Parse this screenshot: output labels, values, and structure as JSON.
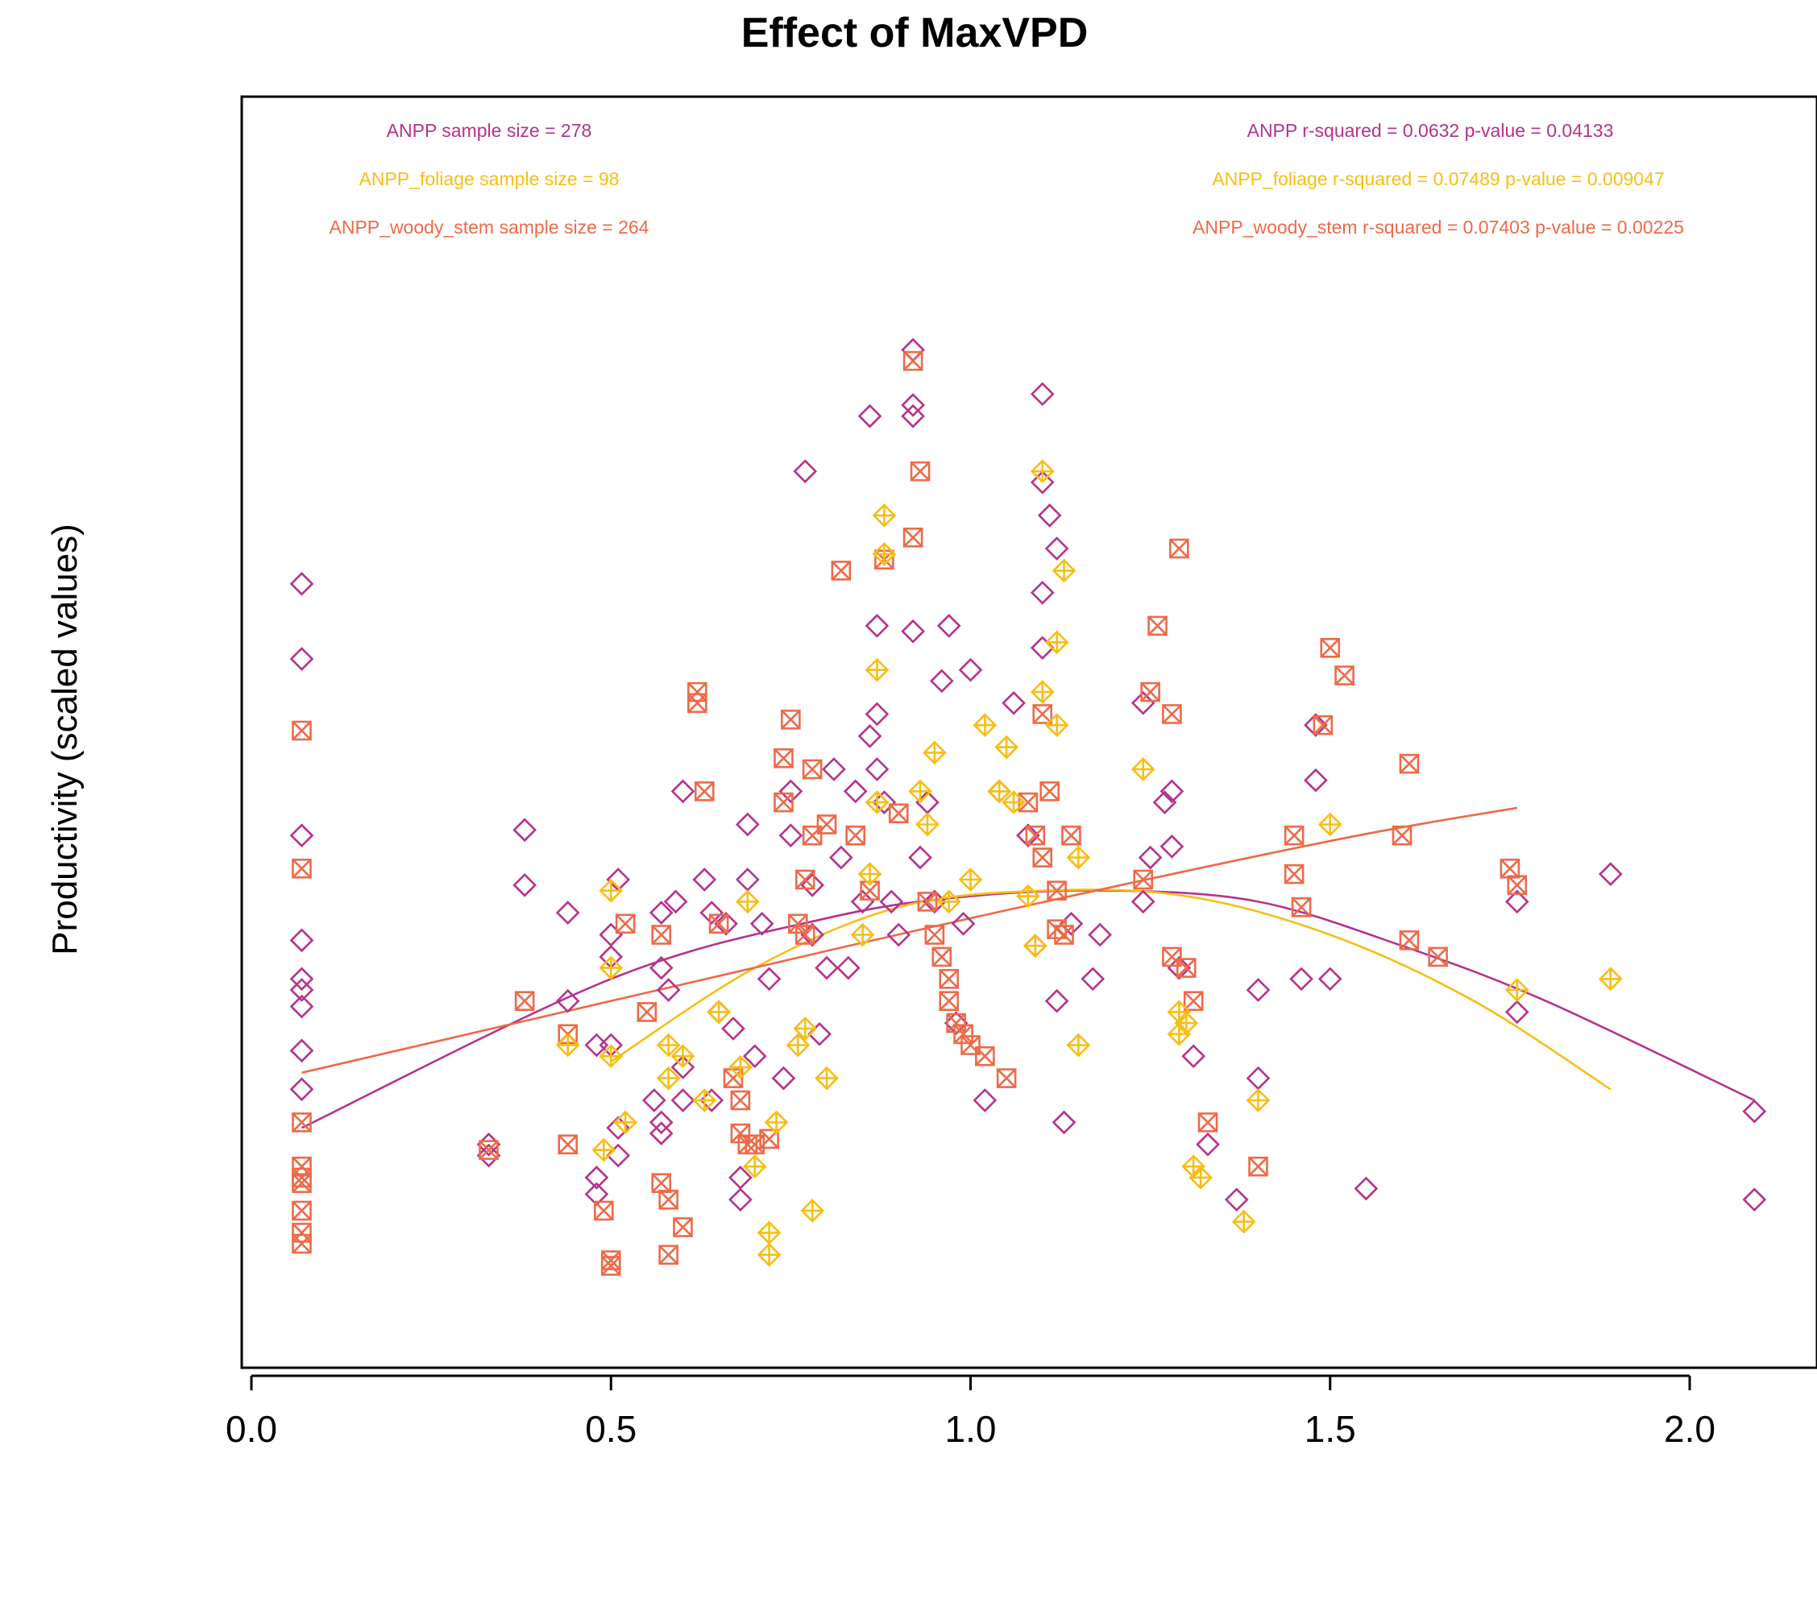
{
  "chart_data": {
    "type": "scatter",
    "title": "Effect of MaxVPD",
    "xlabel": "",
    "ylabel": "Productivity (scaled values)",
    "xlim": [
      -0.02,
      2.2
    ],
    "ylim": [
      0.0,
      1.0
    ],
    "x_ticks": [
      0.0,
      0.5,
      1.0,
      1.5,
      2.0
    ],
    "x_tick_labels": [
      "0.0",
      "0.5",
      "1.0",
      "1.5",
      "2.0"
    ],
    "y_axis_shown": false,
    "grid": false,
    "annotations_left": [
      {
        "text": "ANPP sample size = 278",
        "series": "ANPP"
      },
      {
        "text": "ANPP_foliage sample size = 98",
        "series": "ANPP_foliage"
      },
      {
        "text": "ANPP_woody_stem sample size = 264",
        "series": "ANPP_woody_stem"
      }
    ],
    "annotations_right": [
      {
        "text": "ANPP r-squared =  0.0632 p-value =  0.04133",
        "series": "ANPP"
      },
      {
        "text": "ANPP_foliage r-squared =  0.07489 p-value =  0.009047",
        "series": "ANPP_foliage"
      },
      {
        "text": "ANPP_woody_stem r-squared =  0.07403 p-value =  0.00225",
        "series": "ANPP_woody_stem"
      }
    ],
    "series": [
      {
        "name": "ANPP",
        "color": "#b5338a",
        "marker": "diamond",
        "points": [
          [
            0.07,
            0.668
          ],
          [
            0.07,
            0.6
          ],
          [
            0.07,
            0.44
          ],
          [
            0.07,
            0.345
          ],
          [
            0.07,
            0.31
          ],
          [
            0.07,
            0.3
          ],
          [
            0.07,
            0.285
          ],
          [
            0.07,
            0.245
          ],
          [
            0.07,
            0.21
          ],
          [
            0.33,
            0.15
          ],
          [
            0.33,
            0.16
          ],
          [
            0.38,
            0.445
          ],
          [
            0.38,
            0.395
          ],
          [
            0.44,
            0.37
          ],
          [
            0.44,
            0.29
          ],
          [
            0.48,
            0.25
          ],
          [
            0.48,
            0.13
          ],
          [
            0.48,
            0.115
          ],
          [
            0.5,
            0.25
          ],
          [
            0.5,
            0.35
          ],
          [
            0.5,
            0.33
          ],
          [
            0.51,
            0.4
          ],
          [
            0.51,
            0.175
          ],
          [
            0.51,
            0.15
          ],
          [
            0.56,
            0.2
          ],
          [
            0.57,
            0.17
          ],
          [
            0.57,
            0.18
          ],
          [
            0.57,
            0.37
          ],
          [
            0.57,
            0.32
          ],
          [
            0.58,
            0.3
          ],
          [
            0.59,
            0.38
          ],
          [
            0.6,
            0.48
          ],
          [
            0.6,
            0.23
          ],
          [
            0.6,
            0.2
          ],
          [
            0.63,
            0.4
          ],
          [
            0.64,
            0.37
          ],
          [
            0.64,
            0.2
          ],
          [
            0.65,
            0.28
          ],
          [
            0.66,
            0.36
          ],
          [
            0.67,
            0.265
          ],
          [
            0.68,
            0.13
          ],
          [
            0.68,
            0.11
          ],
          [
            0.69,
            0.45
          ],
          [
            0.69,
            0.4
          ],
          [
            0.7,
            0.24
          ],
          [
            0.71,
            0.36
          ],
          [
            0.72,
            0.31
          ],
          [
            0.74,
            0.22
          ],
          [
            0.75,
            0.48
          ],
          [
            0.75,
            0.44
          ],
          [
            0.77,
            0.77
          ],
          [
            0.78,
            0.395
          ],
          [
            0.78,
            0.35
          ],
          [
            0.79,
            0.26
          ],
          [
            0.8,
            0.32
          ],
          [
            0.81,
            0.5
          ],
          [
            0.82,
            0.42
          ],
          [
            0.83,
            0.32
          ],
          [
            0.84,
            0.48
          ],
          [
            0.85,
            0.38
          ],
          [
            0.86,
            0.53
          ],
          [
            0.86,
            0.82
          ],
          [
            0.87,
            0.63
          ],
          [
            0.87,
            0.55
          ],
          [
            0.87,
            0.5
          ],
          [
            0.88,
            0.47
          ],
          [
            0.89,
            0.38
          ],
          [
            0.9,
            0.35
          ],
          [
            0.92,
            0.83
          ],
          [
            0.92,
            0.82
          ],
          [
            0.92,
            0.88
          ],
          [
            0.92,
            0.625
          ],
          [
            0.93,
            0.42
          ],
          [
            0.94,
            0.47
          ],
          [
            0.95,
            0.38
          ],
          [
            0.96,
            0.58
          ],
          [
            0.97,
            0.63
          ],
          [
            0.98,
            0.27
          ],
          [
            0.99,
            0.36
          ],
          [
            1.0,
            0.59
          ],
          [
            1.02,
            0.2
          ],
          [
            1.04,
            0.48
          ],
          [
            1.06,
            0.56
          ],
          [
            1.08,
            0.44
          ],
          [
            1.09,
            0.34
          ],
          [
            1.1,
            0.76
          ],
          [
            1.1,
            0.66
          ],
          [
            1.1,
            0.61
          ],
          [
            1.1,
            0.84
          ],
          [
            1.11,
            0.73
          ],
          [
            1.12,
            0.7
          ],
          [
            1.12,
            0.29
          ],
          [
            1.13,
            0.18
          ],
          [
            1.14,
            0.36
          ],
          [
            1.17,
            0.31
          ],
          [
            1.18,
            0.35
          ],
          [
            1.24,
            0.38
          ],
          [
            1.24,
            0.56
          ],
          [
            1.25,
            0.42
          ],
          [
            1.27,
            0.47
          ],
          [
            1.28,
            0.48
          ],
          [
            1.28,
            0.43
          ],
          [
            1.29,
            0.32
          ],
          [
            1.31,
            0.24
          ],
          [
            1.33,
            0.16
          ],
          [
            1.37,
            0.11
          ],
          [
            1.4,
            0.3
          ],
          [
            1.4,
            0.22
          ],
          [
            1.46,
            0.31
          ],
          [
            1.48,
            0.54
          ],
          [
            1.48,
            0.49
          ],
          [
            1.5,
            0.31
          ],
          [
            1.55,
            0.12
          ],
          [
            1.76,
            0.28
          ],
          [
            1.76,
            0.38
          ],
          [
            1.89,
            0.405
          ],
          [
            2.09,
            0.19
          ],
          [
            2.09,
            0.11
          ]
        ],
        "fit": {
          "x_start": 0.07,
          "x_end": 2.09,
          "points": [
            [
              0.07,
              0.175
            ],
            [
              0.5,
              0.31
            ],
            [
              0.8,
              0.365
            ],
            [
              1.0,
              0.385
            ],
            [
              1.2,
              0.39
            ],
            [
              1.4,
              0.38
            ],
            [
              1.6,
              0.34
            ],
            [
              1.8,
              0.29
            ],
            [
              2.09,
              0.2
            ]
          ]
        }
      },
      {
        "name": "ANPP_foliage",
        "color": "#f7be16",
        "marker": "diamond-plus",
        "points": [
          [
            0.44,
            0.25
          ],
          [
            0.49,
            0.155
          ],
          [
            0.5,
            0.39
          ],
          [
            0.5,
            0.32
          ],
          [
            0.5,
            0.24
          ],
          [
            0.52,
            0.18
          ],
          [
            0.58,
            0.25
          ],
          [
            0.58,
            0.22
          ],
          [
            0.6,
            0.24
          ],
          [
            0.63,
            0.2
          ],
          [
            0.65,
            0.28
          ],
          [
            0.68,
            0.23
          ],
          [
            0.69,
            0.38
          ],
          [
            0.7,
            0.14
          ],
          [
            0.72,
            0.08
          ],
          [
            0.72,
            0.06
          ],
          [
            0.73,
            0.18
          ],
          [
            0.76,
            0.25
          ],
          [
            0.77,
            0.265
          ],
          [
            0.78,
            0.1
          ],
          [
            0.8,
            0.22
          ],
          [
            0.85,
            0.35
          ],
          [
            0.86,
            0.405
          ],
          [
            0.87,
            0.47
          ],
          [
            0.87,
            0.59
          ],
          [
            0.88,
            0.695
          ],
          [
            0.88,
            0.73
          ],
          [
            0.93,
            0.48
          ],
          [
            0.94,
            0.45
          ],
          [
            0.95,
            0.515
          ],
          [
            0.97,
            0.38
          ],
          [
            1.0,
            0.4
          ],
          [
            1.02,
            0.54
          ],
          [
            1.04,
            0.48
          ],
          [
            1.05,
            0.52
          ],
          [
            1.06,
            0.47
          ],
          [
            1.08,
            0.385
          ],
          [
            1.09,
            0.34
          ],
          [
            1.1,
            0.77
          ],
          [
            1.1,
            0.57
          ],
          [
            1.12,
            0.54
          ],
          [
            1.12,
            0.615
          ],
          [
            1.13,
            0.68
          ],
          [
            1.15,
            0.25
          ],
          [
            1.15,
            0.42
          ],
          [
            1.24,
            0.5
          ],
          [
            1.29,
            0.26
          ],
          [
            1.29,
            0.28
          ],
          [
            1.3,
            0.27
          ],
          [
            1.31,
            0.14
          ],
          [
            1.32,
            0.13
          ],
          [
            1.38,
            0.09
          ],
          [
            1.4,
            0.2
          ],
          [
            1.5,
            0.45
          ],
          [
            1.76,
            0.3
          ],
          [
            1.89,
            0.31
          ]
        ],
        "fit": {
          "x_start": 0.5,
          "x_end": 1.89,
          "points": [
            [
              0.5,
              0.235
            ],
            [
              0.7,
              0.32
            ],
            [
              0.9,
              0.375
            ],
            [
              1.1,
              0.39
            ],
            [
              1.3,
              0.385
            ],
            [
              1.5,
              0.35
            ],
            [
              1.7,
              0.29
            ],
            [
              1.89,
              0.21
            ]
          ]
        }
      },
      {
        "name": "ANPP_woody_stem",
        "color": "#ed6a49",
        "marker": "square-x",
        "points": [
          [
            0.07,
            0.535
          ],
          [
            0.07,
            0.41
          ],
          [
            0.07,
            0.18
          ],
          [
            0.07,
            0.14
          ],
          [
            0.07,
            0.13
          ],
          [
            0.07,
            0.125
          ],
          [
            0.07,
            0.1
          ],
          [
            0.07,
            0.08
          ],
          [
            0.07,
            0.07
          ],
          [
            0.33,
            0.155
          ],
          [
            0.38,
            0.29
          ],
          [
            0.44,
            0.26
          ],
          [
            0.44,
            0.16
          ],
          [
            0.49,
            0.1
          ],
          [
            0.5,
            0.05
          ],
          [
            0.5,
            0.055
          ],
          [
            0.52,
            0.36
          ],
          [
            0.55,
            0.28
          ],
          [
            0.57,
            0.35
          ],
          [
            0.57,
            0.125
          ],
          [
            0.58,
            0.11
          ],
          [
            0.58,
            0.06
          ],
          [
            0.6,
            0.085
          ],
          [
            0.62,
            0.57
          ],
          [
            0.62,
            0.56
          ],
          [
            0.63,
            0.48
          ],
          [
            0.65,
            0.36
          ],
          [
            0.67,
            0.22
          ],
          [
            0.68,
            0.2
          ],
          [
            0.68,
            0.17
          ],
          [
            0.69,
            0.16
          ],
          [
            0.7,
            0.16
          ],
          [
            0.72,
            0.165
          ],
          [
            0.74,
            0.51
          ],
          [
            0.74,
            0.47
          ],
          [
            0.75,
            0.545
          ],
          [
            0.76,
            0.36
          ],
          [
            0.77,
            0.4
          ],
          [
            0.77,
            0.35
          ],
          [
            0.78,
            0.5
          ],
          [
            0.78,
            0.44
          ],
          [
            0.8,
            0.45
          ],
          [
            0.82,
            0.68
          ],
          [
            0.84,
            0.44
          ],
          [
            0.86,
            0.39
          ],
          [
            0.88,
            0.69
          ],
          [
            0.9,
            0.46
          ],
          [
            0.92,
            0.87
          ],
          [
            0.92,
            0.71
          ],
          [
            0.93,
            0.77
          ],
          [
            0.94,
            0.38
          ],
          [
            0.95,
            0.35
          ],
          [
            0.96,
            0.33
          ],
          [
            0.97,
            0.31
          ],
          [
            0.97,
            0.29
          ],
          [
            0.98,
            0.27
          ],
          [
            0.99,
            0.26
          ],
          [
            1.0,
            0.25
          ],
          [
            1.02,
            0.24
          ],
          [
            1.05,
            0.22
          ],
          [
            1.08,
            0.47
          ],
          [
            1.09,
            0.44
          ],
          [
            1.1,
            0.42
          ],
          [
            1.1,
            0.55
          ],
          [
            1.11,
            0.48
          ],
          [
            1.12,
            0.39
          ],
          [
            1.12,
            0.355
          ],
          [
            1.13,
            0.35
          ],
          [
            1.14,
            0.44
          ],
          [
            1.24,
            0.4
          ],
          [
            1.25,
            0.57
          ],
          [
            1.26,
            0.63
          ],
          [
            1.28,
            0.55
          ],
          [
            1.28,
            0.33
          ],
          [
            1.29,
            0.7
          ],
          [
            1.3,
            0.32
          ],
          [
            1.31,
            0.29
          ],
          [
            1.33,
            0.18
          ],
          [
            1.4,
            0.14
          ],
          [
            1.45,
            0.44
          ],
          [
            1.45,
            0.405
          ],
          [
            1.46,
            0.375
          ],
          [
            1.49,
            0.54
          ],
          [
            1.5,
            0.61
          ],
          [
            1.52,
            0.585
          ],
          [
            1.6,
            0.44
          ],
          [
            1.61,
            0.505
          ],
          [
            1.61,
            0.345
          ],
          [
            1.65,
            0.33
          ],
          [
            1.75,
            0.41
          ],
          [
            1.76,
            0.395
          ]
        ],
        "fit": {
          "x_start": 0.07,
          "x_end": 1.76,
          "points": [
            [
              0.07,
              0.225
            ],
            [
              0.5,
              0.29
            ],
            [
              1.0,
              0.365
            ],
            [
              1.5,
              0.435
            ],
            [
              1.76,
              0.465
            ]
          ]
        }
      }
    ]
  }
}
